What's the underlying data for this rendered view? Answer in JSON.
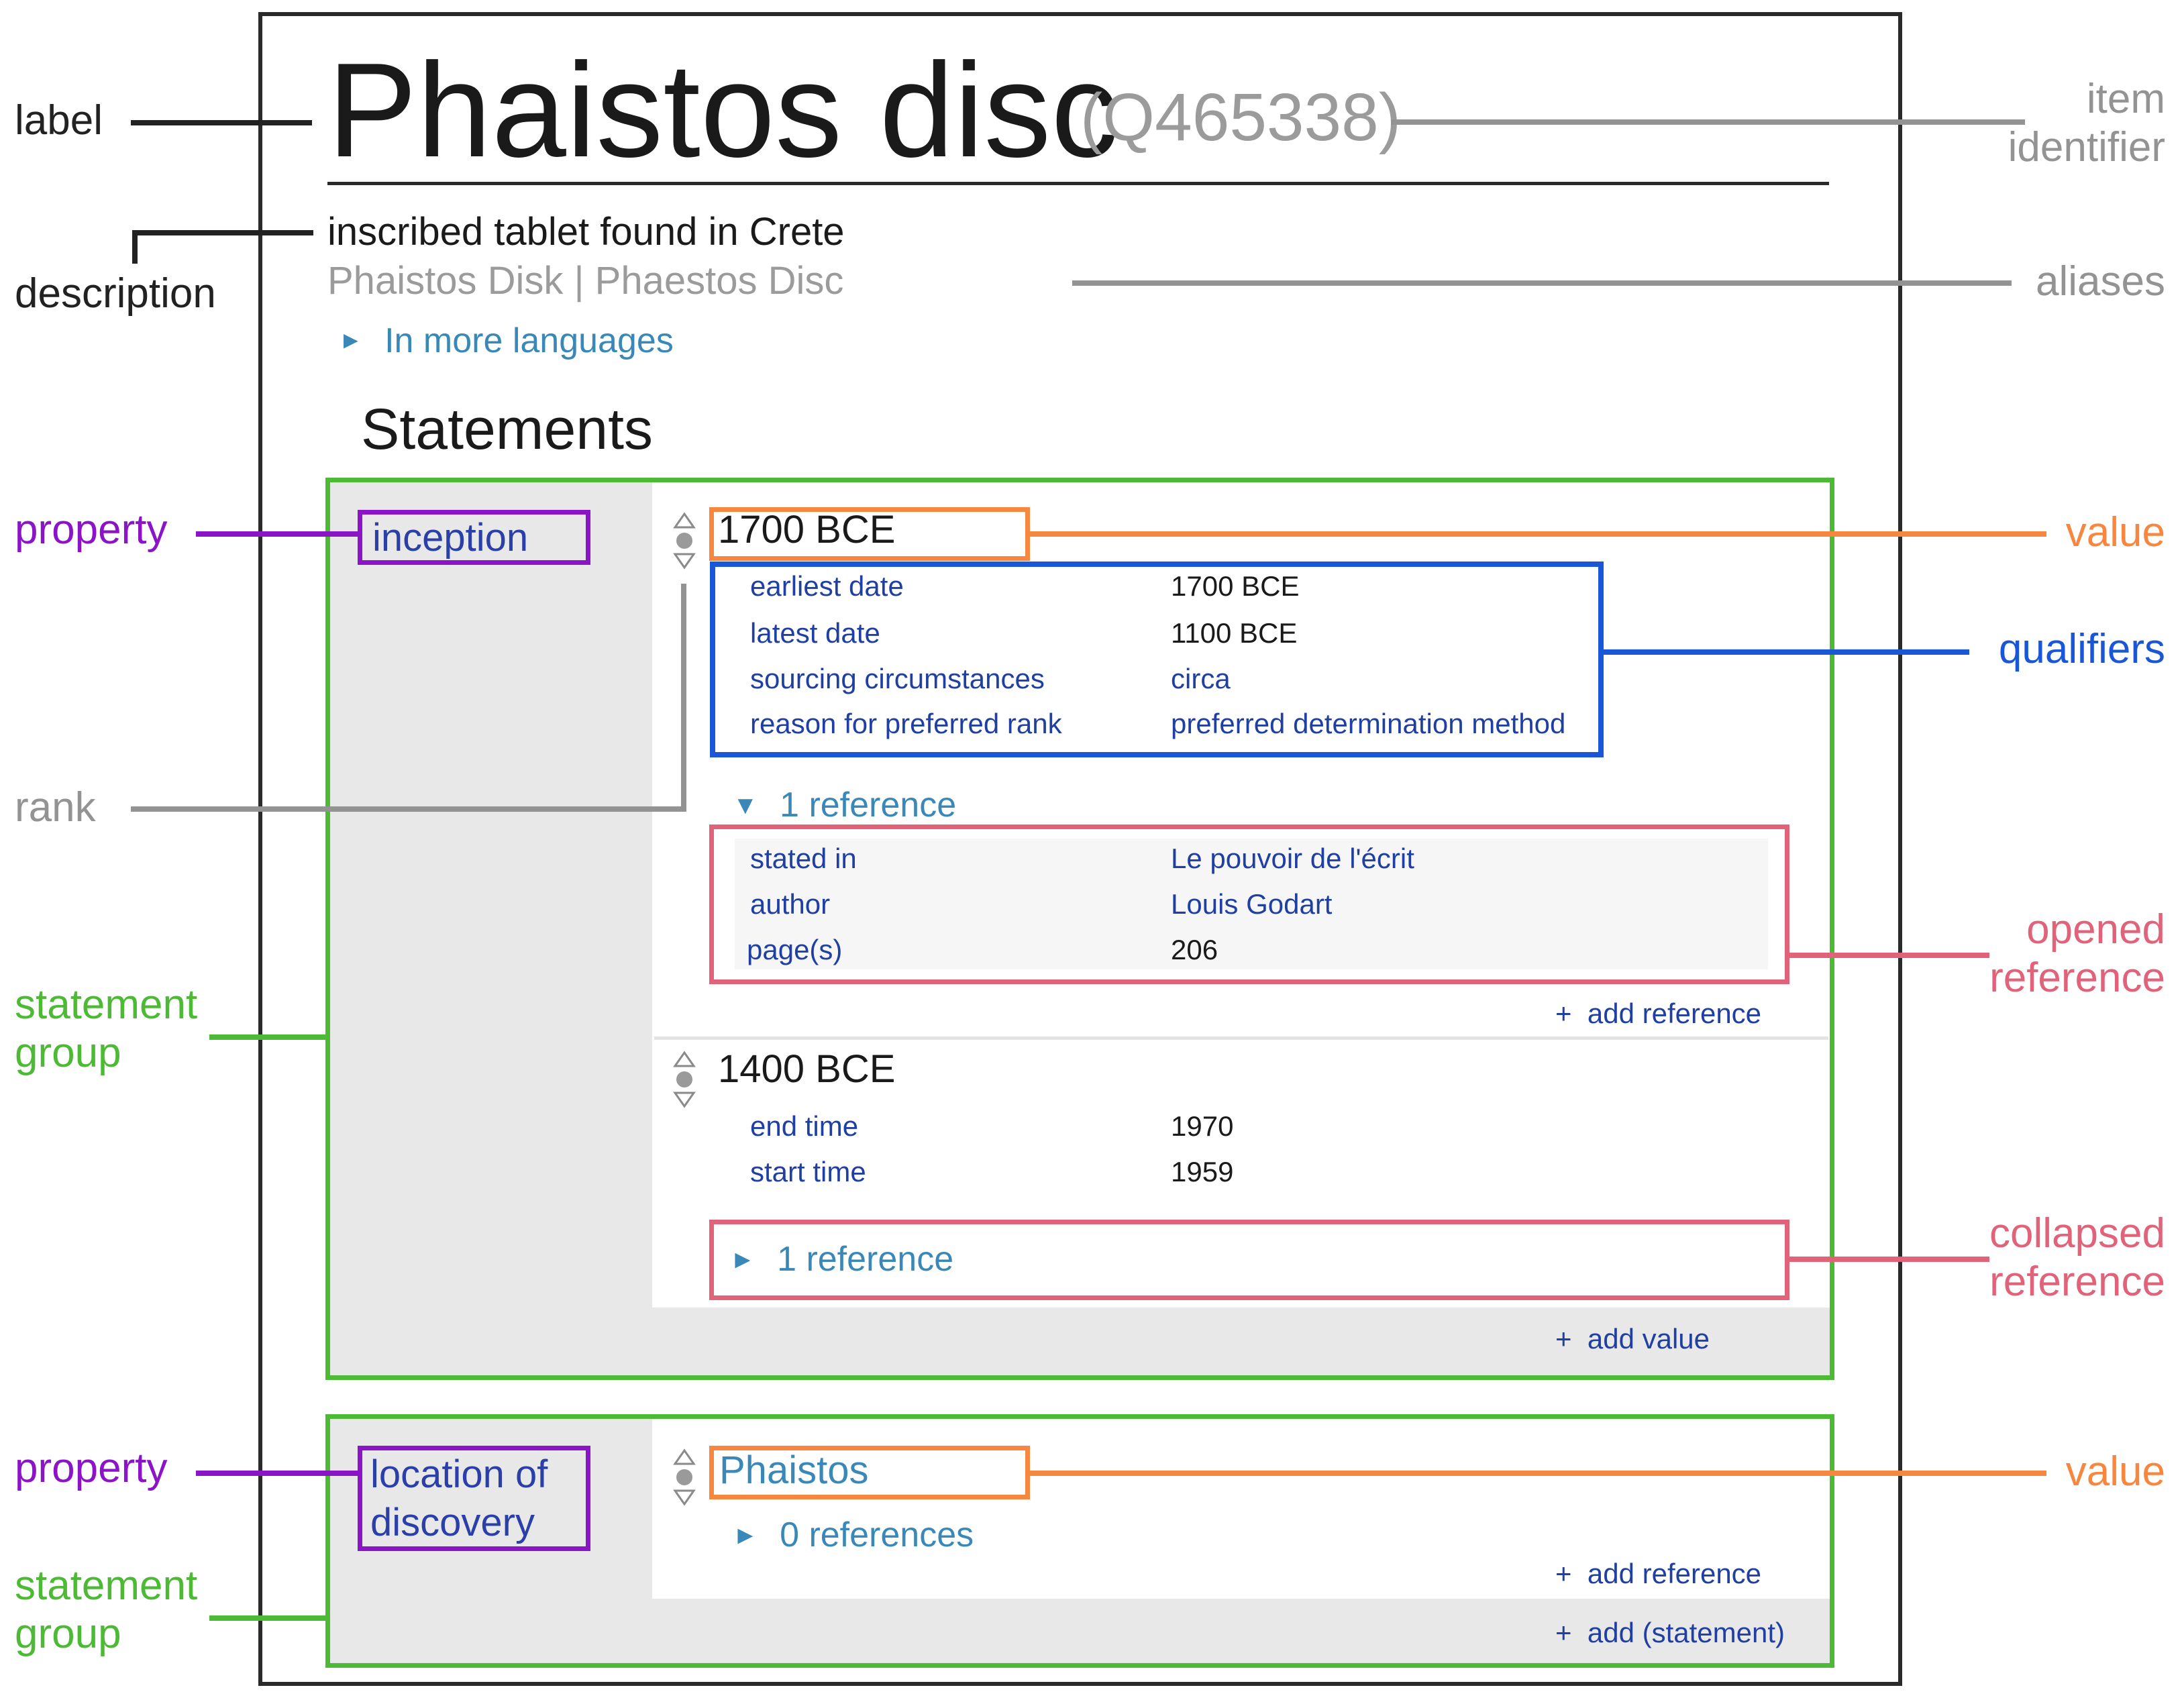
{
  "annotations": {
    "label": "label",
    "description": "description",
    "item_identifier_line1": "item",
    "item_identifier_line2": "identifier",
    "aliases": "aliases",
    "property_1": "property",
    "property_2": "property",
    "rank": "rank",
    "statement_group_1_line1": "statement",
    "statement_group_1_line2": "group",
    "statement_group_2_line1": "statement",
    "statement_group_2_line2": "group",
    "value_1": "value",
    "value_2": "value",
    "qualifiers": "qualifiers",
    "opened_reference_line1": "opened",
    "opened_reference_line2": "reference",
    "collapsed_reference_line1": "collapsed",
    "collapsed_reference_line2": "reference"
  },
  "item": {
    "label": "Phaistos disc",
    "identifier": "(Q465338)",
    "description": "inscribed tablet found in Crete",
    "aliases": "Phaistos Disk | Phaestos Disc",
    "more_languages": "In more languages",
    "more_languages_arrow": "►"
  },
  "statements_heading": "Statements",
  "group1": {
    "property": "inception",
    "statement1": {
      "value": "1700 BCE",
      "qualifiers": [
        {
          "key": "earliest date",
          "value": "1700 BCE"
        },
        {
          "key": "latest date",
          "value": "1100 BCE"
        },
        {
          "key": "sourcing circumstances",
          "value": "circa"
        },
        {
          "key": "reason for preferred rank",
          "value": "preferred determination method"
        }
      ],
      "reference_toggle_arrow": "▼",
      "reference_toggle": "1 reference",
      "reference": [
        {
          "key": "stated in",
          "value": "Le pouvoir de l'écrit"
        },
        {
          "key": "author",
          "value": "Louis Godart"
        },
        {
          "key": "page(s)",
          "value": "206"
        }
      ],
      "add_reference": "+  add reference"
    },
    "statement2": {
      "value": "1400 BCE",
      "qualifiers": [
        {
          "key": "end time",
          "value": "1970"
        },
        {
          "key": "start time",
          "value": "1959"
        }
      ],
      "reference_toggle_arrow": "►",
      "reference_toggle": "1 reference"
    },
    "add_value": "+  add value"
  },
  "group2": {
    "property_line1": "location of",
    "property_line2": "discovery",
    "statement1": {
      "value": "Phaistos",
      "reference_toggle_arrow": "►",
      "reference_toggle": "0 references",
      "add_reference": "+  add reference"
    },
    "add_statement": "+  add (statement)"
  },
  "colors": {
    "frame": "#2a2a2a",
    "property": "#8a14c6",
    "statement_group": "#4dba36",
    "value": "#f7873e",
    "qualifiers": "#1a57d8",
    "reference": "#e0637a",
    "rank": "#939393",
    "link": "#3a88b8"
  },
  "icons": {
    "rank_selector": "rank-up-dot-down-icon"
  }
}
